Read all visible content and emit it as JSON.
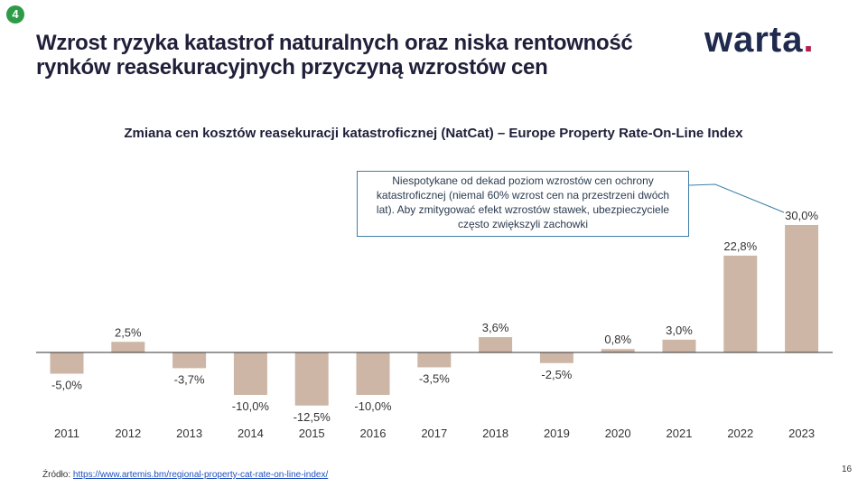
{
  "slide": {
    "number": "4",
    "page": "16"
  },
  "title": "Wzrost ryzyka katastrof naturalnych oraz niska rentowność rynków reasekuracyjnych przyczyną wzrostów cen",
  "logo": {
    "text": "warta",
    "dot": ".",
    "color_primary": "#1f2a4d",
    "color_accent": "#b51e48"
  },
  "callout": {
    "text": "Niespotykane od dekad poziom wzrostów cen ochrony katastroficznej (niemal 60% wzrost cen na przestrzeni dwóch lat). Aby zmitygować efekt wzrostów stawek, ubezpieczyciele często zwiększyli zachowki"
  },
  "source": {
    "label": "Źródło:",
    "url": "https://www.artemis.bm/regional-property-cat-rate-on-line-index/"
  },
  "colors": {
    "bar": "#cdb6a6",
    "axis": "#333333",
    "badge": "#2e9b48",
    "callout_border": "#3e7ea7"
  },
  "chart_data": {
    "type": "bar",
    "title": "Zmiana cen kosztów reasekuracji katastroficznej (NatCat) – Europe Property Rate-On-Line Index",
    "categories": [
      "2011",
      "2012",
      "2013",
      "2014",
      "2015",
      "2016",
      "2017",
      "2018",
      "2019",
      "2020",
      "2021",
      "2022",
      "2023"
    ],
    "values": [
      -5.0,
      2.5,
      -3.7,
      -10.0,
      -12.5,
      -10.0,
      -3.5,
      3.6,
      -2.5,
      0.8,
      3.0,
      22.8,
      30.0
    ],
    "data_labels": [
      "-5,0%",
      "2,5%",
      "-3,7%",
      "-10,0%",
      "-12,5%",
      "-10,0%",
      "-3,5%",
      "3,6%",
      "-2,5%",
      "0,8%",
      "3,0%",
      "22,8%",
      "30,0%"
    ],
    "xlabel": "",
    "ylabel": "",
    "ylim": [
      -12.5,
      30
    ],
    "grid": false,
    "legend": "none"
  }
}
